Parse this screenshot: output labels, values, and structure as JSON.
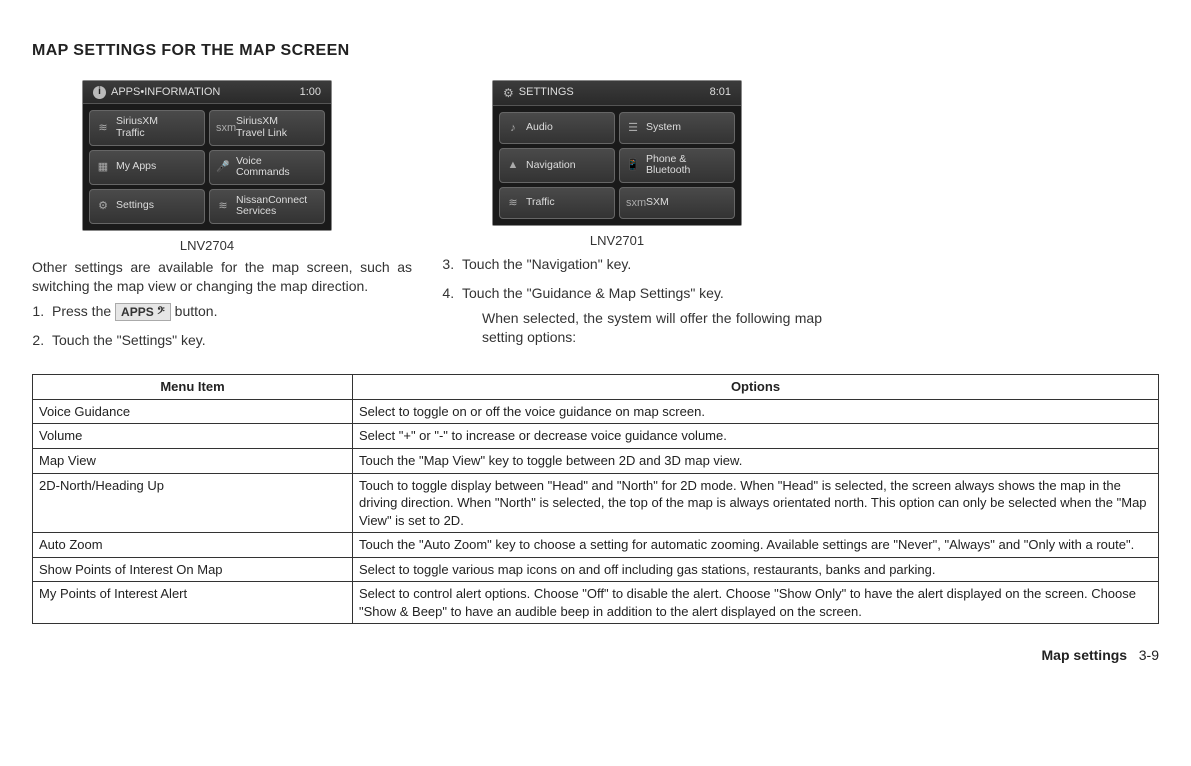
{
  "heading": "MAP SETTINGS FOR THE MAP SCREEN",
  "screen1": {
    "header_label": "APPS•INFORMATION",
    "header_time": "1:00",
    "caption": "LNV2704",
    "buttons": [
      {
        "icon": "≋",
        "label": "SiriusXM\nTraffic"
      },
      {
        "icon": "sxm",
        "label": "SiriusXM\nTravel Link"
      },
      {
        "icon": "▦",
        "label": "My Apps"
      },
      {
        "icon": "🎤",
        "label": "Voice\nCommands"
      },
      {
        "icon": "⚙",
        "label": "Settings"
      },
      {
        "icon": "≋",
        "label": "NissanConnect\nServices"
      }
    ]
  },
  "screen2": {
    "header_label": "SETTINGS",
    "header_time": "8:01",
    "caption": "LNV2701",
    "buttons": [
      {
        "icon": "♪",
        "label": "Audio"
      },
      {
        "icon": "☰",
        "label": "System"
      },
      {
        "icon": "▲",
        "label": "Navigation"
      },
      {
        "icon": "📱",
        "label": "Phone &\nBluetooth"
      },
      {
        "icon": "≋",
        "label": "Traffic"
      },
      {
        "icon": "sxm",
        "label": "SXM"
      }
    ]
  },
  "intro": "Other settings are available for the map screen, such as switching the map view or changing the map direction.",
  "step1_a": "Press the",
  "step1_button": "APPS 𝄢",
  "step1_b": "button.",
  "step2": "Touch the \"Settings\" key.",
  "step3": "Touch the \"Navigation\" key.",
  "step4": "Touch the \"Guidance & Map Settings\" key.",
  "step4_sub": "When selected, the system will offer the following map setting options:",
  "table": {
    "head": [
      "Menu Item",
      "Options"
    ],
    "rows": [
      [
        "Voice Guidance",
        "Select to toggle on or off the voice guidance on map screen."
      ],
      [
        "Volume",
        "Select \"+\" or \"-\" to increase or decrease voice guidance volume."
      ],
      [
        "Map View",
        "Touch the \"Map View\" key to toggle between 2D and 3D map view."
      ],
      [
        "2D-North/Heading Up",
        "Touch to toggle display between \"Head\" and \"North\" for 2D mode. When \"Head\" is selected, the screen always shows the map in the driving direction. When \"North\" is selected, the top of the map is always orientated north. This option can only be selected when the \"Map View\" is set to 2D."
      ],
      [
        "Auto Zoom",
        "Touch the \"Auto Zoom\" key to choose a setting for automatic zooming. Available settings are \"Never\", \"Always\" and \"Only with a route\"."
      ],
      [
        "Show Points of Interest On Map",
        "Select to toggle various map icons on and off including gas stations, restaurants, banks and parking."
      ],
      [
        "My Points of Interest Alert",
        "Select to control alert options. Choose \"Off\" to disable the alert. Choose \"Show Only\" to have the alert displayed on the screen. Choose \"Show & Beep\" to have an audible beep in addition to the alert displayed on the screen."
      ]
    ]
  },
  "footer_section": "Map settings",
  "footer_page": "3-9"
}
